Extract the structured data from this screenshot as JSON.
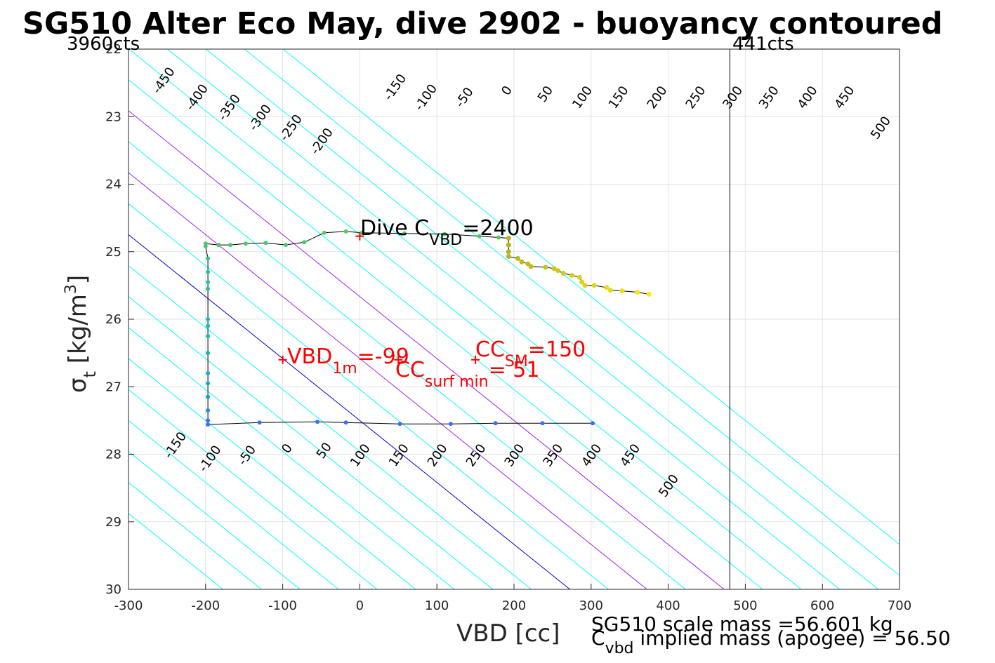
{
  "chart_data": {
    "type": "scatter",
    "title": "SG510 Alter Eco May, dive 2902 - buoyancy contoured",
    "xlabel": "VBD [cc]",
    "ylabel_main": "σ",
    "ylabel_sub": "t",
    "ylabel_unit": "[kg/m",
    "ylabel_sup": "3",
    "ylabel_close": "]",
    "xlim": [
      -300,
      700
    ],
    "ylim": [
      22,
      30
    ],
    "y_reversed": true,
    "grid": true,
    "x_ticks": [
      "-300",
      "-200",
      "-100",
      "0",
      "100",
      "200",
      "300",
      "400",
      "500",
      "600",
      "700"
    ],
    "y_ticks": [
      "22",
      "23",
      "24",
      "25",
      "26",
      "27",
      "28",
      "29",
      "30"
    ],
    "top_left_label": "3960cts",
    "top_right_label": "441cts",
    "counts_line_x": 480,
    "min_vbd_line_x": -200,
    "buoyancy_contours": {
      "levels": [
        -450,
        -400,
        -350,
        -300,
        -250,
        -200,
        -150,
        -100,
        -50,
        0,
        50,
        100,
        150,
        200,
        250,
        300,
        350,
        400,
        450,
        500
      ],
      "color": "#00ffff",
      "zero_color": "#0000cd",
      "highlight_color": "#a020f0",
      "highlight_levels": [
        100,
        200
      ]
    },
    "top_contour_labels": [
      {
        "text": "-450",
        "x": -250,
        "y": 22.5
      },
      {
        "text": "-400",
        "x": -207,
        "y": 22.75
      },
      {
        "text": "-350",
        "x": -165,
        "y": 22.9
      },
      {
        "text": "-300",
        "x": -125,
        "y": 23.05
      },
      {
        "text": "-250",
        "x": -85,
        "y": 23.2
      },
      {
        "text": "-200",
        "x": -45,
        "y": 23.4
      },
      {
        "text": "-150",
        "x": 50,
        "y": 22.6
      },
      {
        "text": "-100",
        "x": 90,
        "y": 22.75
      },
      {
        "text": "-50",
        "x": 140,
        "y": 22.75
      },
      {
        "text": "0",
        "x": 195,
        "y": 22.65
      },
      {
        "text": "50",
        "x": 245,
        "y": 22.7
      },
      {
        "text": "100",
        "x": 293,
        "y": 22.75
      },
      {
        "text": "150",
        "x": 340,
        "y": 22.75
      },
      {
        "text": "200",
        "x": 390,
        "y": 22.75
      },
      {
        "text": "250",
        "x": 440,
        "y": 22.75
      },
      {
        "text": "300",
        "x": 488,
        "y": 22.75
      },
      {
        "text": "350",
        "x": 535,
        "y": 22.75
      },
      {
        "text": "400",
        "x": 585,
        "y": 22.75
      },
      {
        "text": "450",
        "x": 633,
        "y": 22.75
      },
      {
        "text": "500",
        "x": 680,
        "y": 23.2
      }
    ],
    "bottom_contour_labels": [
      {
        "text": "-150",
        "x": -235,
        "y": 27.9
      },
      {
        "text": "-100",
        "x": -190,
        "y": 28.1
      },
      {
        "text": "-50",
        "x": -142,
        "y": 28.05
      },
      {
        "text": "0",
        "x": -90,
        "y": 27.95
      },
      {
        "text": "50",
        "x": -42,
        "y": 27.98
      },
      {
        "text": "100",
        "x": 5,
        "y": 28.05
      },
      {
        "text": "150",
        "x": 55,
        "y": 28.05
      },
      {
        "text": "200",
        "x": 105,
        "y": 28.05
      },
      {
        "text": "250",
        "x": 155,
        "y": 28.05
      },
      {
        "text": "300",
        "x": 205,
        "y": 28.05
      },
      {
        "text": "350",
        "x": 255,
        "y": 28.05
      },
      {
        "text": "400",
        "x": 305,
        "y": 28.05
      },
      {
        "text": "450",
        "x": 355,
        "y": 28.05
      },
      {
        "text": "500",
        "x": 405,
        "y": 28.5
      }
    ],
    "series": [
      {
        "points": [
          {
            "x": -200,
            "y": 24.88
          },
          {
            "x": -200,
            "y": 24.92
          },
          {
            "x": -197,
            "y": 25.1
          },
          {
            "x": -197,
            "y": 25.3
          },
          {
            "x": -197,
            "y": 25.45
          },
          {
            "x": -197,
            "y": 25.55
          },
          {
            "x": -197,
            "y": 26.0
          },
          {
            "x": -197,
            "y": 26.1
          },
          {
            "x": -197,
            "y": 26.25
          },
          {
            "x": -197,
            "y": 26.5
          },
          {
            "x": -197,
            "y": 26.8
          },
          {
            "x": -197,
            "y": 26.95
          },
          {
            "x": -197,
            "y": 27.15
          },
          {
            "x": -197,
            "y": 27.35
          },
          {
            "x": -197,
            "y": 27.5
          },
          {
            "x": -197,
            "y": 27.56
          },
          {
            "x": -130,
            "y": 27.53
          },
          {
            "x": -55,
            "y": 27.52
          },
          {
            "x": -18,
            "y": 27.53
          },
          {
            "x": 52,
            "y": 27.55
          },
          {
            "x": 118,
            "y": 27.55
          },
          {
            "x": 176,
            "y": 27.54
          },
          {
            "x": 237,
            "y": 27.54
          },
          {
            "x": 302,
            "y": 27.54
          },
          {
            "x": -183,
            "y": 24.9
          },
          {
            "x": -168,
            "y": 24.9
          },
          {
            "x": -148,
            "y": 24.88
          },
          {
            "x": -122,
            "y": 24.87
          },
          {
            "x": -96,
            "y": 24.9
          },
          {
            "x": -72,
            "y": 24.86
          },
          {
            "x": -46,
            "y": 24.72
          },
          {
            "x": -18,
            "y": 24.7
          },
          {
            "x": 3,
            "y": 24.72
          },
          {
            "x": 58,
            "y": 24.73
          },
          {
            "x": 110,
            "y": 24.74
          },
          {
            "x": 155,
            "y": 24.77
          },
          {
            "x": 180,
            "y": 24.79
          },
          {
            "x": 193,
            "y": 24.8
          },
          {
            "x": 193,
            "y": 24.9
          },
          {
            "x": 193,
            "y": 25.0
          },
          {
            "x": 193,
            "y": 25.07
          },
          {
            "x": 205,
            "y": 25.1
          },
          {
            "x": 210,
            "y": 25.15
          },
          {
            "x": 218,
            "y": 25.18
          },
          {
            "x": 222,
            "y": 25.22
          },
          {
            "x": 241,
            "y": 25.23
          },
          {
            "x": 252,
            "y": 25.25
          },
          {
            "x": 257,
            "y": 25.28
          },
          {
            "x": 264,
            "y": 25.32
          },
          {
            "x": 275,
            "y": 25.35
          },
          {
            "x": 285,
            "y": 25.38
          },
          {
            "x": 288,
            "y": 25.45
          },
          {
            "x": 292,
            "y": 25.5
          },
          {
            "x": 304,
            "y": 25.5
          },
          {
            "x": 320,
            "y": 25.53
          },
          {
            "x": 325,
            "y": 25.57
          },
          {
            "x": 340,
            "y": 25.58
          },
          {
            "x": 360,
            "y": 25.6
          },
          {
            "x": 375,
            "y": 25.63
          }
        ]
      }
    ],
    "markers": [
      {
        "name": "dive-c-vbd",
        "x": 0,
        "y": 24.77
      },
      {
        "name": "vbd-1m",
        "x": -100,
        "y": 26.6
      },
      {
        "name": "cc-surf-min",
        "x": 50,
        "y": 26.6
      },
      {
        "name": "cc-sm",
        "x": 150,
        "y": 26.6
      }
    ]
  },
  "annotations": {
    "dive_c_prefix": "Dive C",
    "dive_c_sub": "VBD",
    "dive_c_value": "=2400",
    "vbd1m_prefix": "VBD",
    "vbd1m_sub": "1m",
    "vbd1m_value": "=-99",
    "ccsurf_prefix": "CC",
    "ccsurf_sub": "surf min",
    "ccsurf_value": "= 51",
    "ccsm_prefix": "CC",
    "ccsm_sub": "SM",
    "ccsm_value": "=150",
    "mass_line1": "SG510 scale mass =56.601 kg",
    "mass_line2_prefix": "C",
    "mass_line2_sub": "vbd",
    "mass_line2_value": " implied mass (apogee) = 56.50",
    "annotation_color": "#ff0000"
  }
}
